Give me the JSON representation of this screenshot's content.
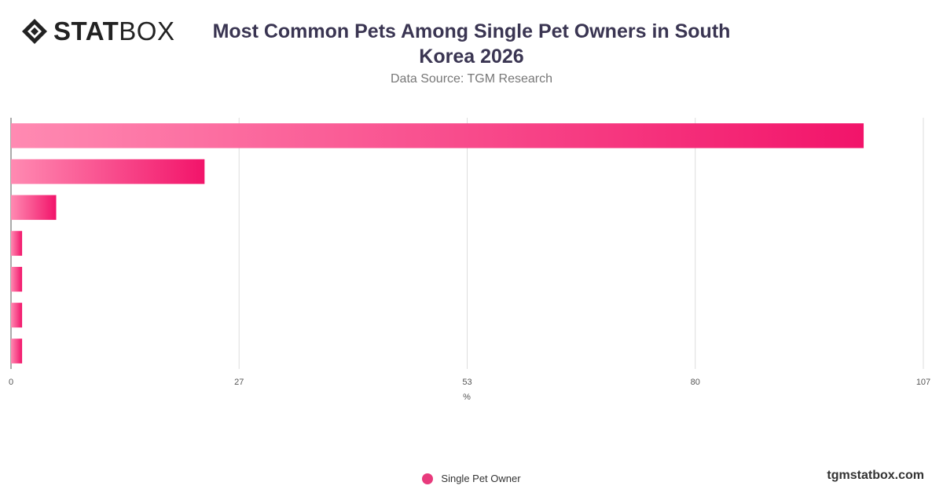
{
  "brand": {
    "logo_text_bold": "STAT",
    "logo_text_light": "BOX",
    "watermark": "tgmstatbox.com"
  },
  "header": {
    "title": "Most Common Pets Among Single Pet Owners in South Korea 2026",
    "subtitle": "Data Source: TGM Research"
  },
  "colors": {
    "bar_start": "#ff8ab2",
    "bar_end": "#f2146a",
    "legend": "#e83a7c",
    "grid": "#dddddd"
  },
  "chart_data": {
    "type": "bar",
    "orientation": "horizontal",
    "title": "Most Common Pets Among Single Pet Owners in South Korea 2026",
    "subtitle": "Data Source: TGM Research",
    "xlabel": "%",
    "ylabel": "",
    "xlim": [
      0,
      107
    ],
    "x_ticks": [
      "0",
      "27",
      "53",
      "80",
      "107"
    ],
    "x_tick_values": [
      0,
      26.75,
      53.5,
      80.25,
      107
    ],
    "grid": true,
    "legend_position": "bottom",
    "series": [
      {
        "name": "Single Pet Owner",
        "values": [
          100,
          22.7,
          5.3,
          1.3,
          1.3,
          1.3,
          1.3
        ]
      }
    ]
  }
}
